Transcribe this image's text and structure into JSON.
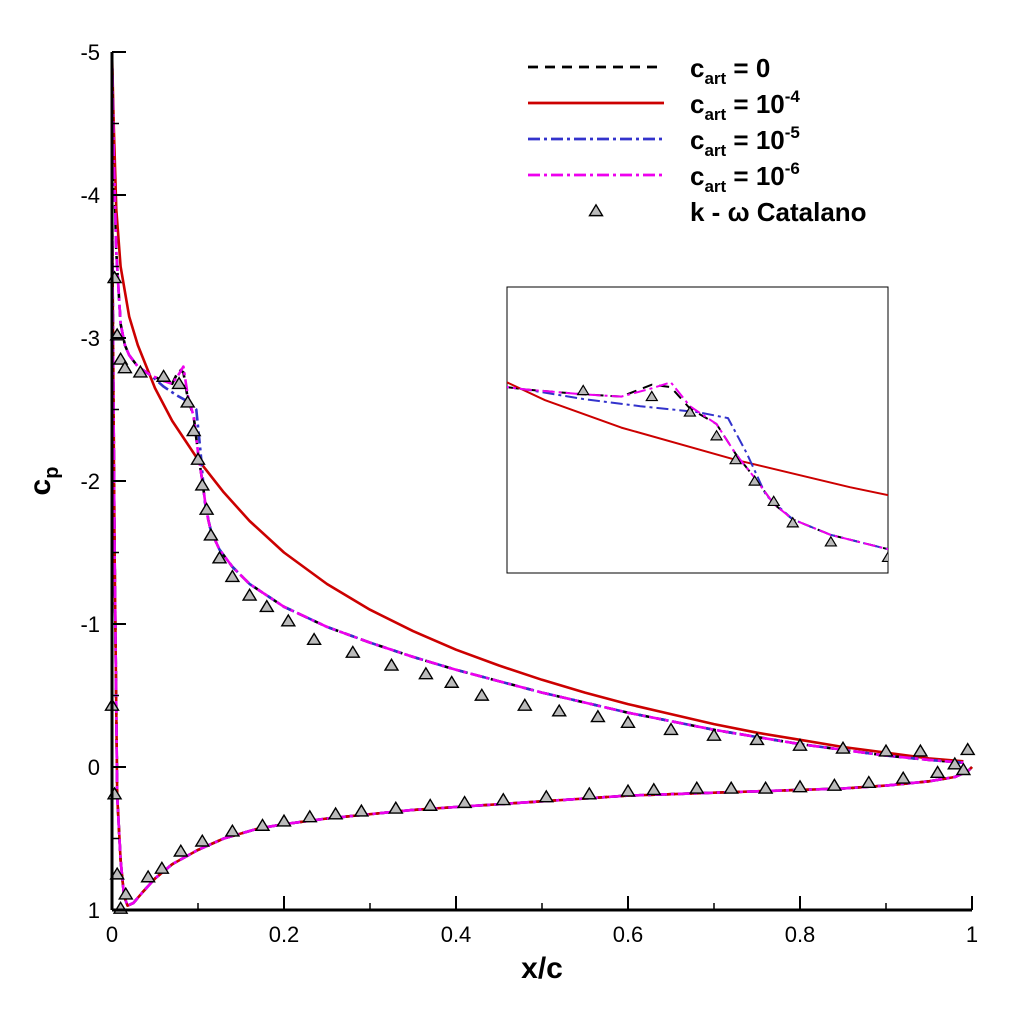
{
  "chart_data": {
    "type": "line",
    "title": "",
    "xlabel": "x/c",
    "ylabel": "c",
    "ylabel_sub": "p",
    "xlim": [
      0,
      1
    ],
    "ylim": [
      1,
      -5
    ],
    "y_inverted": true,
    "x_ticks": [
      0,
      0.2,
      0.4,
      0.6,
      0.8,
      1
    ],
    "x_tick_labels": [
      "0",
      "0.2",
      "0.4",
      "0.6",
      "0.8",
      "1"
    ],
    "y_ticks": [
      -5,
      -4,
      -3,
      -2,
      -1,
      0,
      1
    ],
    "y_tick_labels": [
      "-5",
      "-4",
      "-3",
      "-2",
      "-1",
      "0",
      "1"
    ],
    "grid": false,
    "legend_position": "top-right",
    "series": [
      {
        "name": "c_art = 0",
        "label_main": "c",
        "label_sub": "art",
        "label_rest": " = 0",
        "label_sup": "",
        "color": "#000000",
        "style": "dashed",
        "upper_x": [
          0.0,
          0.002,
          0.005,
          0.01,
          0.015,
          0.02,
          0.03,
          0.045,
          0.06,
          0.07,
          0.078,
          0.083,
          0.088,
          0.095,
          0.1,
          0.105,
          0.11,
          0.115,
          0.125,
          0.14,
          0.16,
          0.2,
          0.25,
          0.3,
          0.35,
          0.4,
          0.45,
          0.5,
          0.55,
          0.6,
          0.65,
          0.7,
          0.75,
          0.8,
          0.85,
          0.9,
          0.95,
          0.99
        ],
        "upper_y": [
          -5.0,
          -4.3,
          -3.6,
          -3.1,
          -2.95,
          -2.88,
          -2.8,
          -2.74,
          -2.7,
          -2.68,
          -2.78,
          -2.76,
          -2.58,
          -2.45,
          -2.2,
          -2.0,
          -1.78,
          -1.65,
          -1.52,
          -1.4,
          -1.28,
          -1.12,
          -0.98,
          -0.87,
          -0.77,
          -0.68,
          -0.6,
          -0.52,
          -0.45,
          -0.38,
          -0.32,
          -0.26,
          -0.21,
          -0.16,
          -0.12,
          -0.08,
          -0.05,
          -0.03
        ],
        "lower_x": [
          0.0,
          0.003,
          0.006,
          0.01,
          0.014,
          0.018,
          0.025,
          0.035,
          0.05,
          0.07,
          0.1,
          0.13,
          0.17,
          0.2,
          0.25,
          0.3,
          0.35,
          0.4,
          0.45,
          0.5,
          0.55,
          0.6,
          0.65,
          0.7,
          0.75,
          0.8,
          0.85,
          0.9,
          0.95,
          0.98,
          0.995,
          1.0
        ],
        "lower_y": [
          -4.0,
          -1.5,
          0.2,
          0.65,
          0.9,
          0.97,
          0.95,
          0.88,
          0.78,
          0.68,
          0.58,
          0.5,
          0.43,
          0.4,
          0.36,
          0.33,
          0.3,
          0.28,
          0.26,
          0.24,
          0.22,
          0.2,
          0.19,
          0.18,
          0.17,
          0.16,
          0.15,
          0.13,
          0.1,
          0.07,
          0.03,
          0.0
        ]
      },
      {
        "name": "c_art = 10^-4",
        "label_main": "c",
        "label_sub": "art",
        "label_rest": " = 10",
        "label_sup": "-4",
        "color": "#cc0000",
        "style": "solid",
        "upper_x": [
          0.0,
          0.002,
          0.005,
          0.01,
          0.02,
          0.03,
          0.05,
          0.07,
          0.1,
          0.13,
          0.16,
          0.2,
          0.25,
          0.3,
          0.35,
          0.4,
          0.45,
          0.5,
          0.55,
          0.6,
          0.65,
          0.7,
          0.75,
          0.8,
          0.85,
          0.9,
          0.95,
          0.99
        ],
        "upper_y": [
          -5.0,
          -4.5,
          -3.9,
          -3.5,
          -3.15,
          -2.95,
          -2.65,
          -2.42,
          -2.15,
          -1.92,
          -1.72,
          -1.5,
          -1.28,
          -1.1,
          -0.95,
          -0.82,
          -0.71,
          -0.61,
          -0.52,
          -0.44,
          -0.37,
          -0.3,
          -0.24,
          -0.19,
          -0.14,
          -0.1,
          -0.06,
          -0.04
        ],
        "lower_x": [
          0.0,
          0.003,
          0.006,
          0.01,
          0.014,
          0.018,
          0.025,
          0.035,
          0.05,
          0.07,
          0.1,
          0.13,
          0.17,
          0.2,
          0.25,
          0.3,
          0.35,
          0.4,
          0.45,
          0.5,
          0.55,
          0.6,
          0.65,
          0.7,
          0.75,
          0.8,
          0.85,
          0.9,
          0.95,
          0.98,
          0.995,
          1.0
        ],
        "lower_y": [
          -4.0,
          -1.5,
          0.2,
          0.65,
          0.9,
          0.97,
          0.95,
          0.88,
          0.78,
          0.68,
          0.58,
          0.5,
          0.43,
          0.4,
          0.36,
          0.33,
          0.3,
          0.28,
          0.26,
          0.24,
          0.22,
          0.2,
          0.19,
          0.18,
          0.17,
          0.16,
          0.15,
          0.13,
          0.1,
          0.07,
          0.03,
          0.0
        ]
      },
      {
        "name": "c_art = 10^-5",
        "label_main": "c",
        "label_sub": "art",
        "label_rest": " = 10",
        "label_sup": "-5",
        "color": "#3333cc",
        "style": "dashdot",
        "upper_x": [
          0.0,
          0.002,
          0.005,
          0.01,
          0.015,
          0.02,
          0.03,
          0.045,
          0.06,
          0.075,
          0.09,
          0.098,
          0.103,
          0.108,
          0.115,
          0.125,
          0.14,
          0.16,
          0.2,
          0.25,
          0.3,
          0.35,
          0.4,
          0.45,
          0.5,
          0.55,
          0.6,
          0.65,
          0.7,
          0.75,
          0.8,
          0.85,
          0.9,
          0.95,
          0.99
        ],
        "upper_y": [
          -5.0,
          -4.3,
          -3.6,
          -3.1,
          -2.95,
          -2.88,
          -2.8,
          -2.74,
          -2.66,
          -2.6,
          -2.55,
          -2.5,
          -2.2,
          -1.85,
          -1.65,
          -1.52,
          -1.4,
          -1.28,
          -1.12,
          -0.98,
          -0.87,
          -0.77,
          -0.68,
          -0.6,
          -0.52,
          -0.45,
          -0.38,
          -0.32,
          -0.26,
          -0.21,
          -0.16,
          -0.12,
          -0.08,
          -0.05,
          -0.03
        ],
        "lower_x": [
          0.0,
          0.003,
          0.006,
          0.01,
          0.014,
          0.018,
          0.025,
          0.035,
          0.05,
          0.07,
          0.1,
          0.13,
          0.17,
          0.2,
          0.25,
          0.3,
          0.35,
          0.4,
          0.45,
          0.5,
          0.55,
          0.6,
          0.65,
          0.7,
          0.75,
          0.8,
          0.85,
          0.9,
          0.95,
          0.98,
          0.995,
          1.0
        ],
        "lower_y": [
          -4.0,
          -1.5,
          0.2,
          0.65,
          0.9,
          0.97,
          0.95,
          0.88,
          0.78,
          0.68,
          0.58,
          0.5,
          0.43,
          0.4,
          0.36,
          0.33,
          0.3,
          0.28,
          0.26,
          0.24,
          0.22,
          0.2,
          0.19,
          0.18,
          0.17,
          0.16,
          0.15,
          0.13,
          0.1,
          0.07,
          0.03,
          0.0
        ]
      },
      {
        "name": "c_art = 10^-6",
        "label_main": "c",
        "label_sub": "art",
        "label_rest": " = 10",
        "label_sup": "-6",
        "color": "#ee00ee",
        "style": "dashdot",
        "upper_x": [
          0.0,
          0.002,
          0.005,
          0.01,
          0.015,
          0.02,
          0.03,
          0.045,
          0.06,
          0.07,
          0.078,
          0.083,
          0.088,
          0.095,
          0.1,
          0.105,
          0.11,
          0.115,
          0.125,
          0.14,
          0.16,
          0.2,
          0.25,
          0.3,
          0.35,
          0.4,
          0.45,
          0.5,
          0.55,
          0.6,
          0.65,
          0.7,
          0.75,
          0.8,
          0.85,
          0.9,
          0.95,
          0.99
        ],
        "upper_y": [
          -5.0,
          -4.3,
          -3.6,
          -3.1,
          -2.95,
          -2.88,
          -2.8,
          -2.74,
          -2.7,
          -2.68,
          -2.75,
          -2.8,
          -2.6,
          -2.45,
          -2.2,
          -2.0,
          -1.78,
          -1.65,
          -1.52,
          -1.4,
          -1.28,
          -1.12,
          -0.98,
          -0.87,
          -0.77,
          -0.68,
          -0.6,
          -0.52,
          -0.45,
          -0.38,
          -0.32,
          -0.26,
          -0.21,
          -0.16,
          -0.12,
          -0.08,
          -0.05,
          -0.03
        ],
        "lower_x": [
          0.0,
          0.003,
          0.006,
          0.01,
          0.014,
          0.018,
          0.025,
          0.035,
          0.05,
          0.07,
          0.1,
          0.13,
          0.17,
          0.2,
          0.25,
          0.3,
          0.35,
          0.4,
          0.45,
          0.5,
          0.55,
          0.6,
          0.65,
          0.7,
          0.75,
          0.8,
          0.85,
          0.9,
          0.95,
          0.98,
          0.995,
          1.0
        ],
        "lower_y": [
          -4.0,
          -1.5,
          0.2,
          0.65,
          0.9,
          0.97,
          0.95,
          0.88,
          0.78,
          0.68,
          0.58,
          0.5,
          0.43,
          0.4,
          0.36,
          0.33,
          0.3,
          0.28,
          0.26,
          0.24,
          0.22,
          0.2,
          0.19,
          0.18,
          0.17,
          0.16,
          0.15,
          0.13,
          0.1,
          0.07,
          0.03,
          0.0
        ]
      }
    ],
    "reference": {
      "name": "k - ω  Catalano",
      "label": "k - ω  Catalano",
      "marker": "triangle",
      "fill": "#bbbbbb",
      "stroke": "#000000",
      "upper_x": [
        0.003,
        0.006,
        0.01,
        0.015,
        0.033,
        0.06,
        0.078,
        0.088,
        0.095,
        0.1,
        0.105,
        0.11,
        0.115,
        0.125,
        0.14,
        0.16,
        0.18,
        0.205,
        0.235,
        0.28,
        0.325,
        0.365,
        0.395,
        0.43,
        0.48,
        0.52,
        0.565,
        0.6,
        0.65,
        0.7,
        0.75,
        0.8,
        0.85,
        0.9,
        0.94,
        0.98,
        0.995
      ],
      "upper_y": [
        -3.42,
        -3.02,
        -2.85,
        -2.79,
        -2.76,
        -2.73,
        -2.68,
        -2.55,
        -2.35,
        -2.15,
        -1.97,
        -1.8,
        -1.62,
        -1.46,
        -1.33,
        -1.2,
        -1.12,
        -1.02,
        -0.89,
        -0.8,
        -0.71,
        -0.65,
        -0.59,
        -0.5,
        -0.43,
        -0.39,
        -0.35,
        -0.31,
        -0.26,
        -0.22,
        -0.19,
        -0.15,
        -0.13,
        -0.11,
        -0.11,
        -0.02,
        -0.12
      ],
      "lower_x": [
        0.0,
        0.003,
        0.006,
        0.01,
        0.016,
        0.042,
        0.058,
        0.08,
        0.105,
        0.14,
        0.175,
        0.2,
        0.23,
        0.26,
        0.29,
        0.33,
        0.37,
        0.41,
        0.455,
        0.505,
        0.555,
        0.6,
        0.63,
        0.68,
        0.72,
        0.76,
        0.8,
        0.84,
        0.88,
        0.92,
        0.96,
        0.99
      ],
      "lower_y": [
        -0.43,
        0.19,
        0.75,
        0.99,
        0.89,
        0.77,
        0.71,
        0.59,
        0.52,
        0.45,
        0.41,
        0.38,
        0.35,
        0.33,
        0.31,
        0.29,
        0.27,
        0.25,
        0.23,
        0.21,
        0.19,
        0.17,
        0.16,
        0.15,
        0.15,
        0.15,
        0.14,
        0.13,
        0.11,
        0.08,
        0.04,
        0.02
      ]
    },
    "inset": {
      "description_x_range": [
        0.04,
        0.14
      ],
      "description_y_range": [
        -3.6,
        -1.2
      ]
    }
  }
}
